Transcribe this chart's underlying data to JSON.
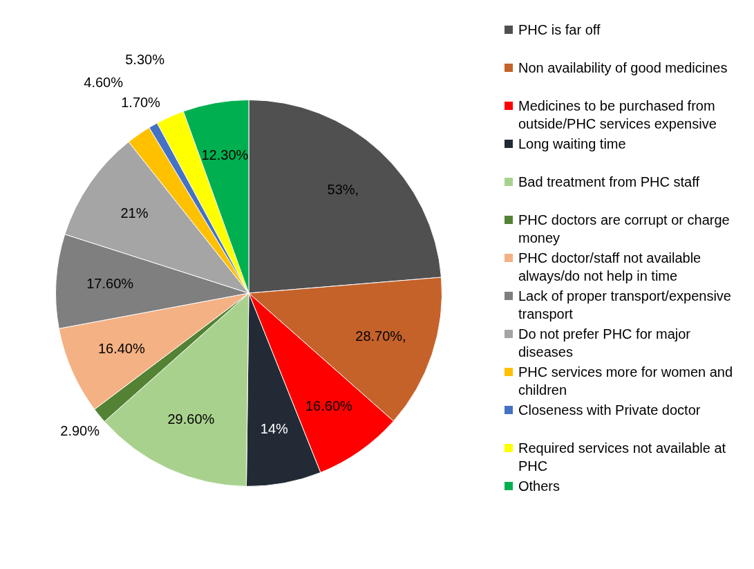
{
  "chart_data": {
    "type": "pie",
    "categories": [
      "PHC is far off",
      "Non availability of good medicines",
      "Medicines to be purchased from outside/PHC services expensive",
      "Long waiting time",
      "Bad treatment from PHC staff",
      "PHC doctors are corrupt or charge money",
      "PHC doctor/staff not available always/do not help in time",
      "Lack of proper transport/expensive transport",
      "Do not prefer PHC for major diseases",
      "PHC services more for women and children",
      "Closeness with Private doctor",
      "Required services not available at PHC",
      "Others"
    ],
    "values": [
      53,
      28.7,
      16.6,
      14,
      29.6,
      2.9,
      16.4,
      17.6,
      21,
      4.6,
      1.7,
      5.3,
      12.3
    ],
    "value_labels": [
      "53%,",
      "28.70%,",
      "16.60%",
      "14%",
      "29.60%",
      "2.90%",
      "16.40%",
      "17.60%",
      "21%",
      "4.60%",
      "1.70%",
      "5.30%",
      "12.30%"
    ],
    "colors": [
      "#505050",
      "#c5622a",
      "#ff0000",
      "#222a35",
      "#a9d18e",
      "#548235",
      "#f4b183",
      "#7f7f7f",
      "#a5a5a5",
      "#ffc000",
      "#4472c4",
      "#ffff00",
      "#00b050"
    ],
    "legend": "right"
  }
}
